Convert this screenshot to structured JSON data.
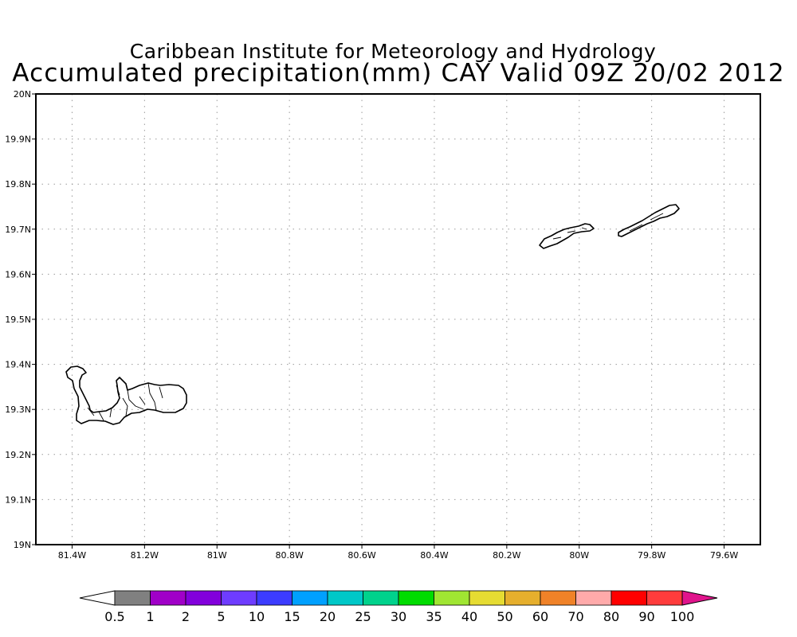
{
  "title": {
    "line1": "Caribbean Institute for Meteorology and Hydrology",
    "line2": "Accumulated precipitation(mm) CAY Valid 09Z 20/02 2012"
  },
  "map": {
    "lon_range": [
      -81.5,
      -79.5
    ],
    "lat_range": [
      19.0,
      20.0
    ],
    "grid": "dotted",
    "x_ticks": [
      {
        "value": -81.4,
        "label": "81.4W"
      },
      {
        "value": -81.2,
        "label": "81.2W"
      },
      {
        "value": -81.0,
        "label": "81W"
      },
      {
        "value": -80.8,
        "label": "80.8W"
      },
      {
        "value": -80.6,
        "label": "80.6W"
      },
      {
        "value": -80.4,
        "label": "80.4W"
      },
      {
        "value": -80.2,
        "label": "80.2W"
      },
      {
        "value": -80.0,
        "label": "80W"
      },
      {
        "value": -79.8,
        "label": "79.8W"
      },
      {
        "value": -79.6,
        "label": "79.6W"
      }
    ],
    "y_ticks": [
      {
        "value": 19.0,
        "label": "19N"
      },
      {
        "value": 19.1,
        "label": "19.1N"
      },
      {
        "value": 19.2,
        "label": "19.2N"
      },
      {
        "value": 19.3,
        "label": "19.3N"
      },
      {
        "value": 19.4,
        "label": "19.4N"
      },
      {
        "value": 19.5,
        "label": "19.5N"
      },
      {
        "value": 19.6,
        "label": "19.6N"
      },
      {
        "value": 19.7,
        "label": "19.7N"
      },
      {
        "value": 19.8,
        "label": "19.8N"
      },
      {
        "value": 19.9,
        "label": "19.9N"
      },
      {
        "value": 20.0,
        "label": "20N"
      }
    ],
    "islands": [
      "Grand Cayman",
      "Little Cayman",
      "Cayman Brac"
    ]
  },
  "colorbar": {
    "low_color": "#ffffff",
    "high_color": "#e0148c",
    "bins": [
      "#808080",
      "#a000c8",
      "#8200dc",
      "#6e3cff",
      "#3c3cff",
      "#00a0ff",
      "#00c8c8",
      "#00d28c",
      "#00dc00",
      "#a0e632",
      "#e6dc32",
      "#e6af2d",
      "#f08228",
      "#ffaaaa",
      "#ff0000",
      "#ff3c3c"
    ],
    "labels": [
      "0.5",
      "1",
      "2",
      "5",
      "10",
      "15",
      "20",
      "25",
      "30",
      "35",
      "40",
      "50",
      "60",
      "70",
      "80",
      "90",
      "100"
    ]
  }
}
